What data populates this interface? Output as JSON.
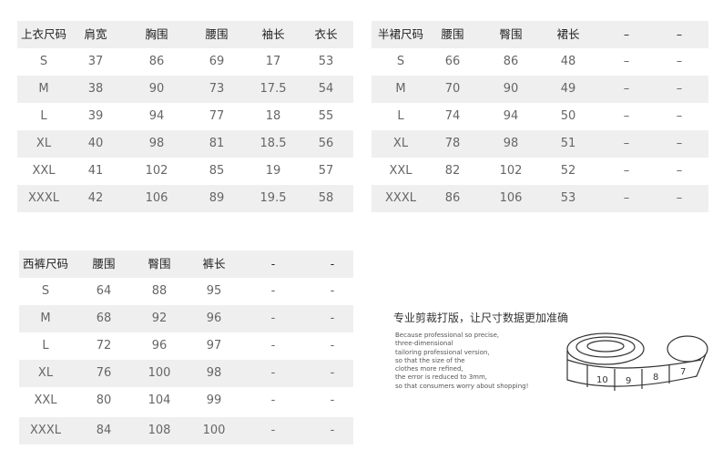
{
  "tables": [
    {
      "headers": [
        "上衣尺码",
        "肩宽",
        "胸围",
        "腰围",
        "袖长",
        "衣长"
      ],
      "rows": [
        [
          "S",
          "37",
          "86",
          "69",
          "17",
          "53"
        ],
        [
          "M",
          "38",
          "90",
          "73",
          "17.5",
          "54"
        ],
        [
          "L",
          "39",
          "94",
          "77",
          "18",
          "55"
        ],
        [
          "XL",
          "40",
          "98",
          "81",
          "18.5",
          "56"
        ],
        [
          "XXL",
          "41",
          "102",
          "85",
          "19",
          "57"
        ],
        [
          "XXXL",
          "42",
          "106",
          "89",
          "19.5",
          "58"
        ]
      ]
    },
    {
      "headers": [
        "半裙尺码",
        "腰围",
        "臀围",
        "裙长",
        "–",
        "–"
      ],
      "rows": [
        [
          "S",
          "66",
          "86",
          "48",
          "–",
          "–"
        ],
        [
          "M",
          "70",
          "90",
          "49",
          "–",
          "–"
        ],
        [
          "L",
          "74",
          "94",
          "50",
          "–",
          "–"
        ],
        [
          "XL",
          "78",
          "98",
          "51",
          "–",
          "–"
        ],
        [
          "XXL",
          "82",
          "102",
          "52",
          "–",
          "–"
        ],
        [
          "XXXL",
          "86",
          "106",
          "53",
          "–",
          "–"
        ]
      ]
    },
    {
      "headers": [
        "西裤尺码",
        "腰围",
        "臀围",
        "裤长",
        "-",
        "-"
      ],
      "rows": [
        [
          "S",
          "64",
          "88",
          "95",
          "-",
          "-"
        ],
        [
          "M",
          "68",
          "92",
          "96",
          "-",
          "-"
        ],
        [
          "L",
          "72",
          "96",
          "97",
          "-",
          "-"
        ],
        [
          "XL",
          "76",
          "100",
          "98",
          "-",
          "-"
        ],
        [
          "XXL",
          "80",
          "104",
          "99",
          "-",
          "-"
        ],
        [
          "XXXL",
          "84",
          "108",
          "100",
          "-",
          "-"
        ]
      ]
    }
  ],
  "promo": {
    "title": "专业剪裁打版，让尺寸数据更加准确",
    "lines": [
      "Because professional so precise,",
      "three-dimensional",
      "tailoring professional version,",
      "so that the size of the",
      "clothes more refined,",
      "the error is reduced to 3mm,",
      "so that consumers worry about shopping!"
    ],
    "image": "measuring-tape-illustration"
  }
}
